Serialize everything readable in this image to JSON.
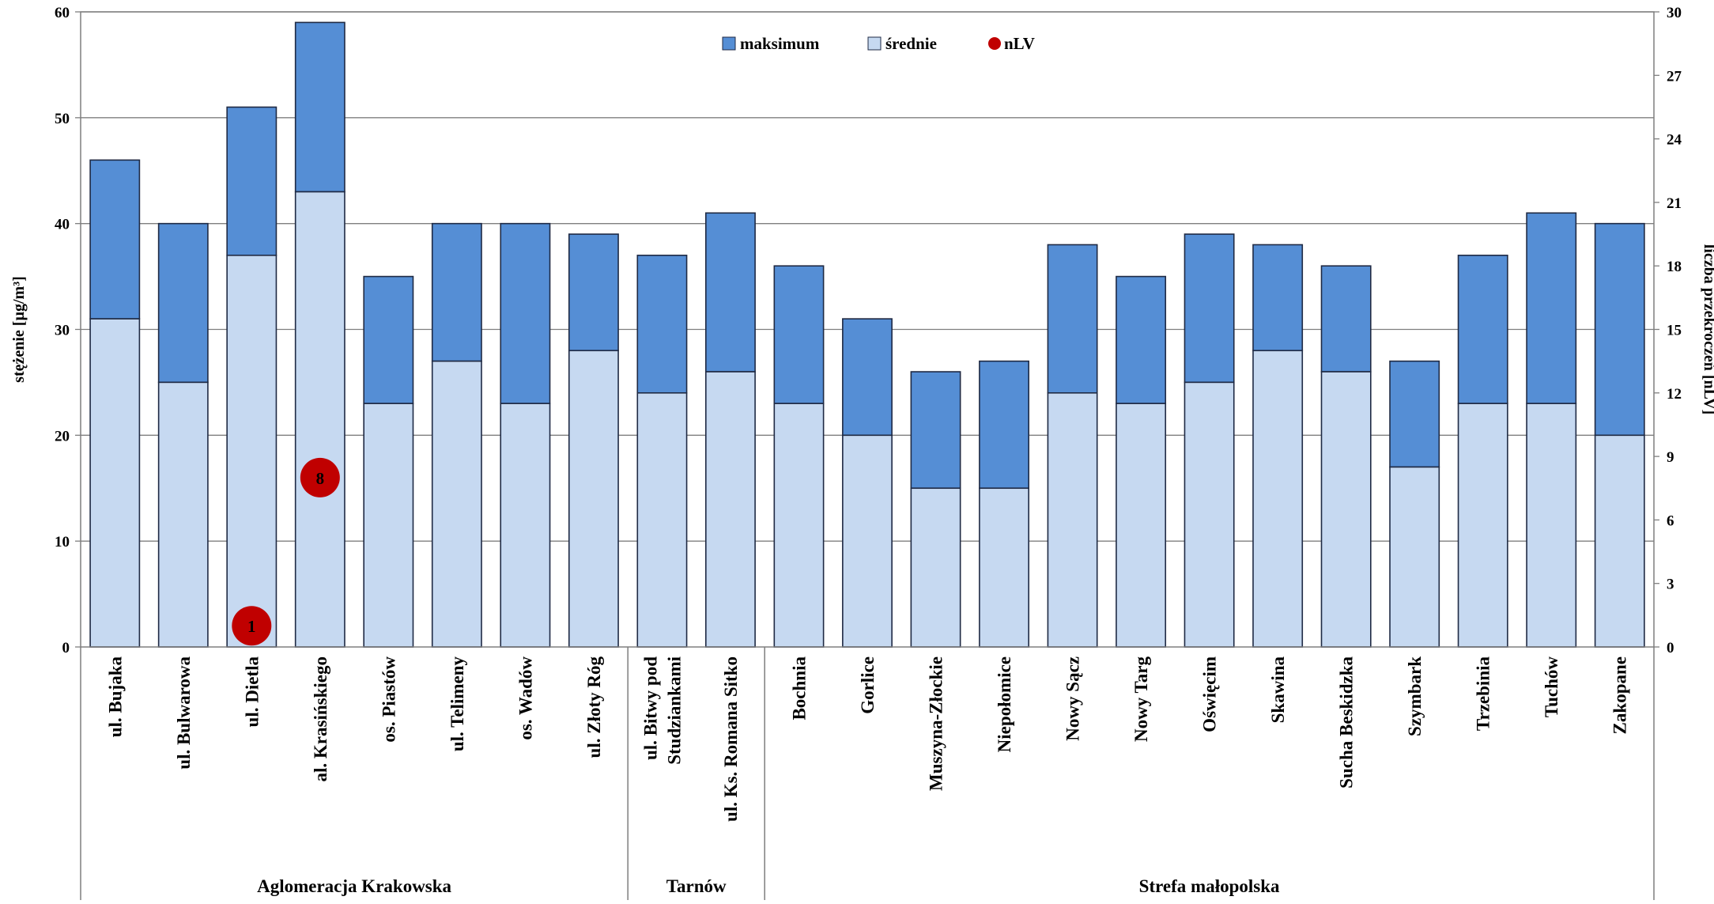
{
  "chart_data": {
    "type": "bar",
    "categories": [
      [
        "ul. Bujaka"
      ],
      [
        "ul. Bulwarowa"
      ],
      [
        "ul. Dietla"
      ],
      [
        "al. Krasińskiego"
      ],
      [
        "os. Piastów"
      ],
      [
        "ul. Telimeny"
      ],
      [
        "os. Wadów"
      ],
      [
        "ul. Złoty Róg"
      ],
      [
        "ul. Bitwy pod",
        "Studziankami"
      ],
      [
        "ul. Ks. Romana Sitko"
      ],
      [
        "Bochnia"
      ],
      [
        "Gorlice"
      ],
      [
        "Muszyna-Złockie"
      ],
      [
        "Niepołomice"
      ],
      [
        "Nowy Sącz"
      ],
      [
        "Nowy Targ"
      ],
      [
        "Oświęcim"
      ],
      [
        "Skawina"
      ],
      [
        "Sucha Beskidzka"
      ],
      [
        "Szymbark"
      ],
      [
        "Trzebinia"
      ],
      [
        "Tuchów"
      ],
      [
        "Zakopane"
      ]
    ],
    "series": [
      {
        "name": "maksimum",
        "color": "#558ed5",
        "values": [
          46,
          40,
          51,
          59,
          35,
          40,
          40,
          39,
          37,
          41,
          36,
          31,
          26,
          27,
          38,
          35,
          39,
          38,
          36,
          27,
          37,
          41,
          40
        ]
      },
      {
        "name": "średnie",
        "color": "#c6d9f1",
        "values": [
          31,
          25,
          37,
          43,
          23,
          27,
          23,
          28,
          24,
          26,
          23,
          20,
          15,
          15,
          24,
          23,
          25,
          28,
          26,
          17,
          23,
          23,
          20
        ]
      }
    ],
    "nlv": {
      "name": "nLV",
      "color": "#c00000",
      "points": [
        {
          "category_index": 2,
          "value": 1
        },
        {
          "category_index": 3,
          "value": 8
        }
      ]
    },
    "groups": [
      {
        "label": "Aglomeracja Krakowska",
        "start": 0,
        "end": 7
      },
      {
        "label": "Tarnów",
        "start": 8,
        "end": 9
      },
      {
        "label": "Strefa małopolska",
        "start": 10,
        "end": 22
      }
    ],
    "ylabel": "stężenie [µg/m³]",
    "y2label": "liczba przekroczeń [nLV]",
    "ylim": [
      0,
      60
    ],
    "y2lim": [
      0,
      30
    ],
    "yticks": [
      0,
      10,
      20,
      30,
      40,
      50,
      60
    ],
    "y2ticks": [
      0,
      3,
      6,
      9,
      12,
      15,
      18,
      21,
      24,
      27,
      30
    ],
    "grid": true,
    "legend_position": "top-center"
  }
}
